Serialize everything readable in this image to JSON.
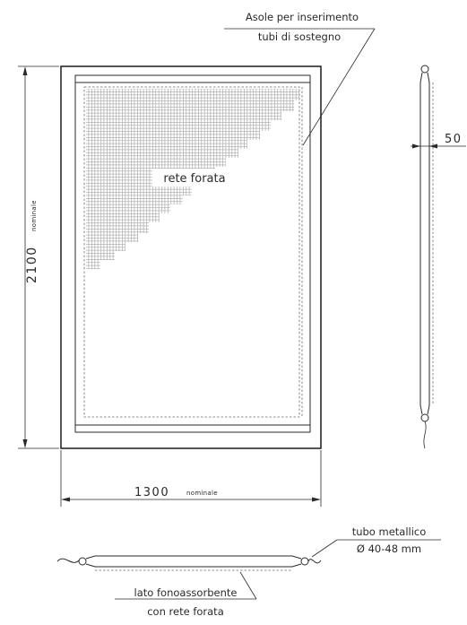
{
  "labels": {
    "slots_line1": "Asole per inserimento",
    "slots_line2": "tubi di sostegno",
    "mesh": "rete forata",
    "width_value": "1300",
    "width_unit": "nominale",
    "height_value": "2100",
    "height_unit": "nominale",
    "thickness": "50",
    "tube_line1": "tubo metallico",
    "tube_line2": "Ø 40-48 mm",
    "absorb_line1": "lato fonoassorbente",
    "absorb_line2": "con rete forata"
  },
  "colors": {
    "ink": "#2a2a2a",
    "mesh": "#9a9a9a",
    "dashed": "#6a6a6a"
  }
}
